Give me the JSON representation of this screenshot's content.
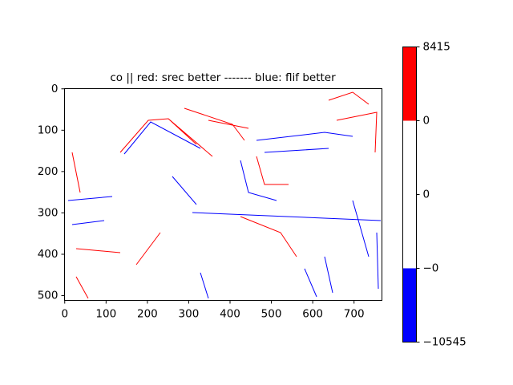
{
  "chart_data": {
    "type": "image",
    "title": "co || red: srec better ------- blue: flif better",
    "xlim": [
      -0.5,
      767.5
    ],
    "ylim": [
      511.5,
      -0.5
    ],
    "xticks": [
      0,
      100,
      200,
      300,
      400,
      500,
      600,
      700
    ],
    "yticks": [
      0,
      100,
      200,
      300,
      400,
      500
    ],
    "colorbar": {
      "spacing": "uniform",
      "colors": [
        "blue",
        "white",
        "white",
        "red"
      ],
      "ticks": [
        {
          "value": -10545,
          "label": "−10545"
        },
        {
          "value": 0,
          "label": "−0"
        },
        0,
        0,
        8415
      ]
    }
  }
}
